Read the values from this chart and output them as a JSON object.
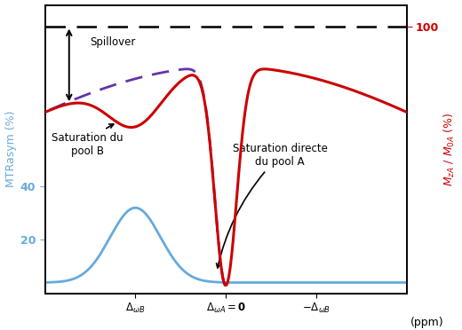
{
  "z_spectrum_color": "#cc0000",
  "dashed_curve_color": "#6633aa",
  "mtr_curve_color": "#66aadd",
  "annotation_spillover": "Spillover",
  "annotation_pool_b": "Saturation du\npool B",
  "annotation_pool_a": "Saturation directe\ndu pool A",
  "background_color": "white",
  "border_color": "black",
  "ylabel_left": "MTRasym (%)",
  "xlabel": "(ppm)"
}
